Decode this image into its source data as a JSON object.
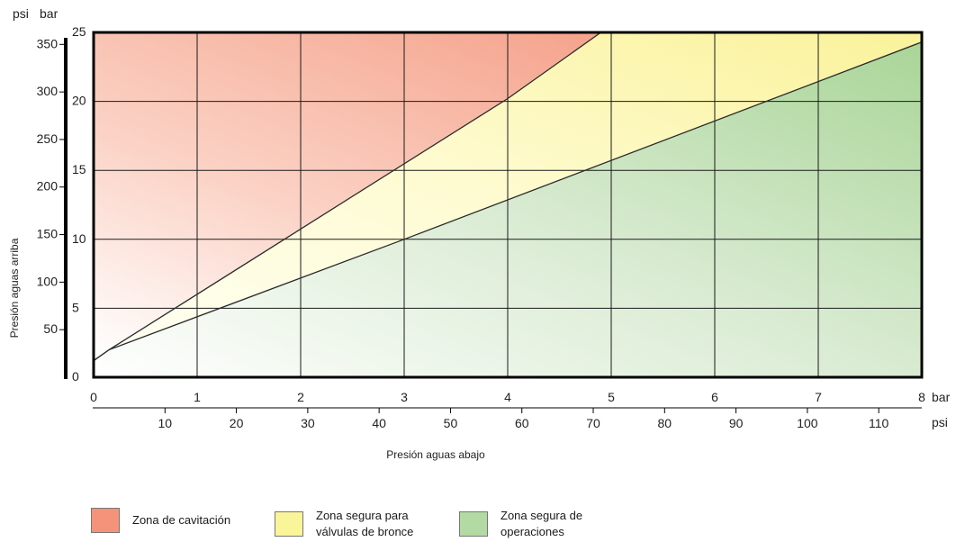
{
  "chart_data": {
    "type": "area",
    "x_units": {
      "primary": "bar",
      "secondary": "psi"
    },
    "y_units": {
      "primary": "bar",
      "secondary": "psi"
    },
    "xlabel": "Presión aguas abajo",
    "ylabel": "Presión aguas arriba",
    "xlim": [
      0,
      8
    ],
    "ylim": [
      0,
      25
    ],
    "x_ticks_bar": [
      "0",
      "1",
      "2",
      "3",
      "4",
      "5",
      "6",
      "7",
      "8"
    ],
    "x_ticks_psi": [
      "10",
      "20",
      "30",
      "40",
      "50",
      "60",
      "70",
      "80",
      "90",
      "100",
      "110"
    ],
    "y_ticks_bar": [
      "0",
      "5",
      "10",
      "15",
      "20",
      "25"
    ],
    "y_ticks_psi": [
      "50",
      "100",
      "150",
      "200",
      "250",
      "300",
      "350"
    ],
    "grid": true,
    "boundaries": [
      {
        "name": "Zona de cavitación",
        "points": [
          [
            0,
            1.2
          ],
          [
            0.15,
            2.0
          ],
          [
            4.0,
            20.2
          ],
          [
            4.9,
            25
          ]
        ]
      },
      {
        "name": "Zona segura para válvulas de bronce",
        "points": [
          [
            0,
            1.2
          ],
          [
            0.15,
            2.0
          ],
          [
            3.0,
            10.0
          ],
          [
            8.0,
            24.3
          ]
        ]
      }
    ],
    "zones": [
      {
        "name": "Zona de cavitación",
        "color": "#F4927A"
      },
      {
        "name": "Zona segura para válvulas de bronce",
        "color": "#FBF59A"
      },
      {
        "name": "Zona segura de operaciones",
        "color": "#B3DAA2"
      }
    ],
    "legend_position": "bottom-left"
  },
  "legend": {
    "items": [
      {
        "label_lines": [
          "Zona de cavitación"
        ],
        "color": "#F4927A"
      },
      {
        "label_lines": [
          "Zona segura para",
          "válvulas de bronce"
        ],
        "color": "#FBF59A"
      },
      {
        "label_lines": [
          "Zona segura de",
          "operaciones"
        ],
        "color": "#B3DAA2"
      }
    ]
  }
}
